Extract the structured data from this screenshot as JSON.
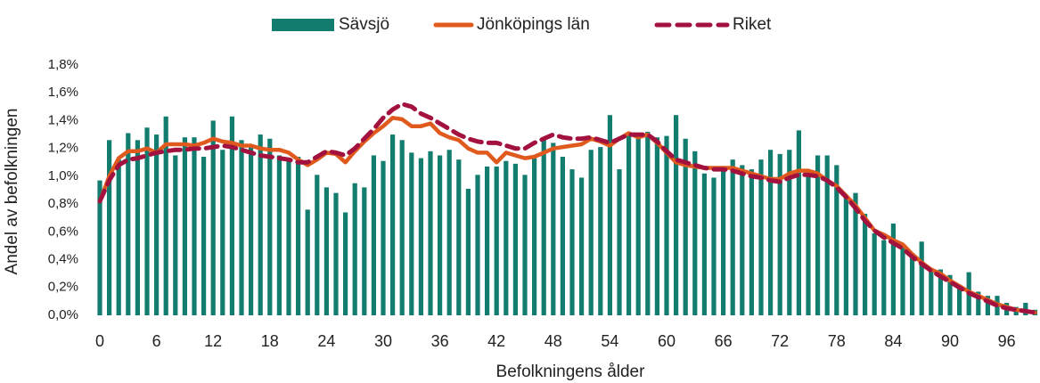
{
  "chart_data": {
    "type": "bar_line",
    "x_label": "Befolkningens ålder",
    "y_label": "Andel av befolkningen",
    "categories": [
      0,
      null,
      null,
      null,
      null,
      null,
      6,
      null,
      null,
      null,
      null,
      null,
      12,
      null,
      null,
      null,
      null,
      null,
      18,
      null,
      null,
      null,
      null,
      null,
      24,
      null,
      null,
      null,
      null,
      null,
      30,
      null,
      null,
      null,
      null,
      null,
      36,
      null,
      null,
      null,
      null,
      null,
      42,
      null,
      null,
      null,
      null,
      null,
      48,
      null,
      null,
      null,
      null,
      null,
      54,
      null,
      null,
      null,
      null,
      null,
      60,
      null,
      null,
      null,
      null,
      null,
      66,
      null,
      null,
      null,
      null,
      null,
      72,
      null,
      null,
      null,
      null,
      null,
      78,
      null,
      null,
      null,
      null,
      null,
      84,
      null,
      null,
      null,
      null,
      null,
      90,
      null,
      null,
      null,
      null,
      null,
      96,
      null,
      null,
      null
    ],
    "series": [
      {
        "name": "Sävsjö",
        "kind": "bar",
        "color": "#127c6e",
        "values": [
          0.97,
          1.26,
          1.12,
          1.31,
          1.26,
          1.35,
          1.3,
          1.43,
          1.15,
          1.28,
          1.28,
          1.14,
          1.4,
          1.19,
          1.43,
          1.26,
          1.21,
          1.3,
          1.27,
          1.15,
          1.12,
          1.14,
          0.76,
          1.01,
          0.92,
          0.88,
          0.74,
          0.95,
          0.92,
          1.15,
          1.11,
          1.3,
          1.26,
          1.17,
          1.13,
          1.18,
          1.15,
          1.19,
          1.12,
          0.91,
          1.01,
          1.07,
          1.07,
          1.11,
          1.09,
          1.01,
          1.13,
          1.27,
          1.24,
          1.14,
          1.05,
          0.99,
          1.19,
          1.21,
          1.44,
          1.05,
          1.31,
          1.3,
          1.32,
          1.28,
          1.29,
          1.44,
          1.27,
          1.18,
          1.02,
          0.99,
          1.05,
          1.12,
          1.08,
          1.05,
          1.12,
          1.19,
          1.16,
          1.19,
          1.33,
          1.02,
          1.15,
          1.15,
          1.08,
          0.86,
          0.88,
          0.73,
          0.59,
          0.54,
          0.66,
          0.49,
          0.43,
          0.53,
          0.34,
          0.33,
          0.29,
          0.22,
          0.31,
          0.17,
          0.14,
          0.14,
          0.09,
          0.06,
          0.09,
          0.04
        ]
      },
      {
        "name": "Jönköpings län",
        "kind": "line",
        "color": "#e05a1e",
        "values": [
          0.82,
          1.0,
          1.13,
          1.18,
          1.18,
          1.2,
          1.17,
          1.23,
          1.23,
          1.23,
          1.22,
          1.24,
          1.27,
          1.25,
          1.24,
          1.22,
          1.22,
          1.2,
          1.19,
          1.19,
          1.17,
          1.12,
          1.08,
          1.12,
          1.17,
          1.16,
          1.1,
          1.18,
          1.25,
          1.31,
          1.36,
          1.42,
          1.41,
          1.36,
          1.36,
          1.38,
          1.31,
          1.28,
          1.26,
          1.2,
          1.17,
          1.17,
          1.1,
          1.17,
          1.15,
          1.13,
          1.14,
          1.17,
          1.2,
          1.21,
          1.22,
          1.23,
          1.27,
          1.25,
          1.22,
          1.27,
          1.31,
          1.28,
          1.3,
          1.24,
          1.17,
          1.1,
          1.08,
          1.07,
          1.06,
          1.06,
          1.06,
          1.06,
          1.04,
          1.02,
          1.0,
          0.98,
          0.98,
          1.02,
          1.04,
          1.04,
          1.02,
          0.97,
          0.93,
          0.86,
          0.79,
          0.7,
          0.61,
          0.58,
          0.54,
          0.51,
          0.44,
          0.38,
          0.33,
          0.3,
          0.25,
          0.21,
          0.17,
          0.14,
          0.11,
          0.08,
          0.06,
          0.04,
          0.03,
          0.02
        ]
      },
      {
        "name": "Riket",
        "kind": "dashed",
        "color": "#a3123f",
        "values": [
          0.82,
          0.97,
          1.08,
          1.12,
          1.13,
          1.15,
          1.17,
          1.18,
          1.19,
          1.19,
          1.2,
          1.2,
          1.21,
          1.22,
          1.21,
          1.19,
          1.17,
          1.15,
          1.14,
          1.13,
          1.12,
          1.1,
          1.1,
          1.14,
          1.18,
          1.17,
          1.15,
          1.2,
          1.27,
          1.34,
          1.42,
          1.48,
          1.52,
          1.5,
          1.45,
          1.42,
          1.38,
          1.34,
          1.3,
          1.27,
          1.25,
          1.24,
          1.24,
          1.22,
          1.2,
          1.2,
          1.24,
          1.27,
          1.3,
          1.28,
          1.27,
          1.27,
          1.28,
          1.26,
          1.24,
          1.27,
          1.3,
          1.3,
          1.3,
          1.25,
          1.18,
          1.12,
          1.1,
          1.08,
          1.06,
          1.05,
          1.05,
          1.04,
          1.02,
          1.0,
          0.99,
          0.97,
          0.96,
          0.99,
          1.01,
          1.01,
          1.0,
          0.97,
          0.92,
          0.85,
          0.77,
          0.68,
          0.61,
          0.56,
          0.52,
          0.48,
          0.42,
          0.37,
          0.32,
          0.28,
          0.24,
          0.2,
          0.16,
          0.13,
          0.1,
          0.07,
          0.05,
          0.04,
          0.03,
          0.02
        ]
      }
    ],
    "ylim": [
      0,
      1.8
    ],
    "yticks": [
      {
        "value": 0,
        "label": "0,0%"
      },
      {
        "value": 0.2,
        "label": "0,2%"
      },
      {
        "value": 0.4,
        "label": "0,4%"
      },
      {
        "value": 0.6,
        "label": "0,6%"
      },
      {
        "value": 0.8,
        "label": "0,8%"
      },
      {
        "value": 1.0,
        "label": "1,0%"
      },
      {
        "value": 1.2,
        "label": "1,2%"
      },
      {
        "value": 1.4,
        "label": "1,4%"
      },
      {
        "value": 1.6,
        "label": "1,6%"
      },
      {
        "value": 1.8,
        "label": "1,8%"
      }
    ],
    "legend": "top",
    "grid": false
  }
}
